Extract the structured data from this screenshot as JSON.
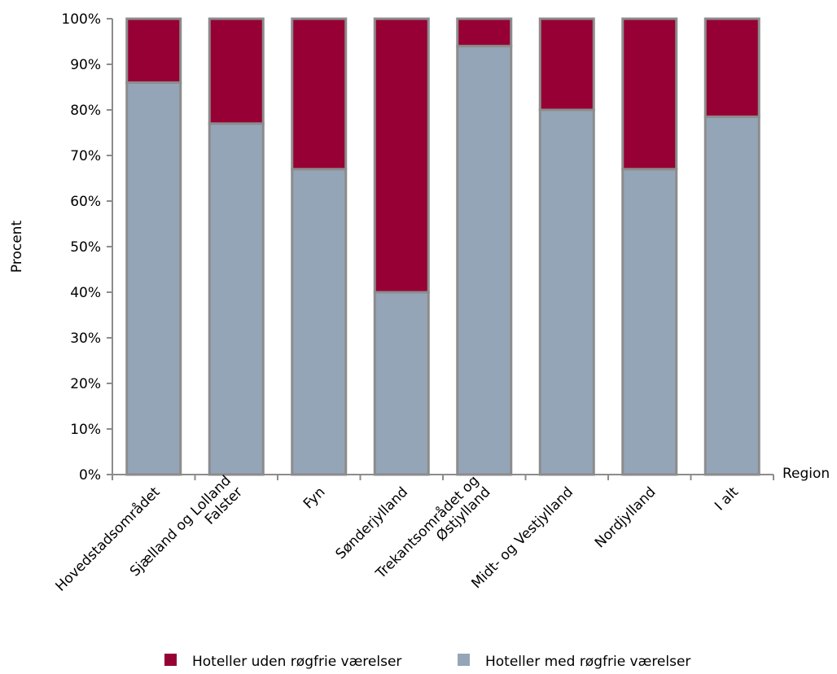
{
  "chart_data": {
    "type": "bar",
    "stacked": true,
    "percent": true,
    "xlabel": "Region",
    "ylabel": "Procent",
    "ylim": [
      0,
      100
    ],
    "yticks": [
      "0%",
      "10%",
      "20%",
      "30%",
      "40%",
      "50%",
      "60%",
      "70%",
      "80%",
      "90%",
      "100%"
    ],
    "categories": [
      [
        "Hovedstadsområdet"
      ],
      [
        "Sjælland og Lolland",
        "Falster"
      ],
      [
        "Fyn"
      ],
      [
        "Sønderjylland"
      ],
      [
        "Trekantsområdet og",
        "Østjylland"
      ],
      [
        "Midt- og Vestjylland"
      ],
      [
        "Nordjylland"
      ],
      [
        "I alt"
      ]
    ],
    "series": [
      {
        "name": "Hoteller med røgfrie værelser",
        "color": "#95a5b8",
        "values": [
          86,
          77,
          67,
          40,
          94,
          80,
          67,
          78.5
        ]
      },
      {
        "name": "Hoteller uden røgfrie værelser",
        "color": "#960034",
        "values": [
          14,
          23,
          33,
          60,
          6,
          20,
          33,
          21.5
        ]
      }
    ],
    "legend_order": [
      1,
      0
    ],
    "legend_position": "bottom",
    "grid": false,
    "bar_border_color": "#8c8c8c",
    "axis_color": "#8c8c8c"
  }
}
